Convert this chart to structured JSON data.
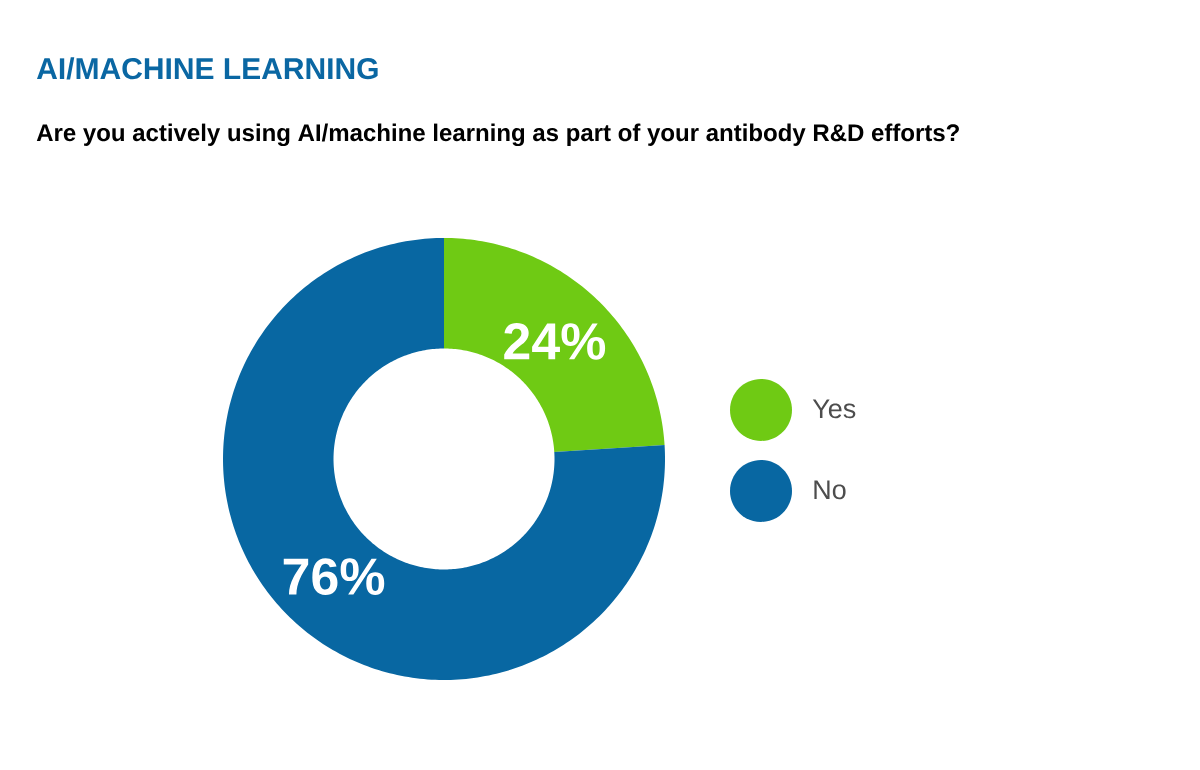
{
  "chart_data": {
    "type": "donut",
    "title": "AI/MACHINE LEARNING",
    "subtitle": "Are you actively using AI/machine learning as part of your antibody R&D efforts?",
    "categories": [
      "Yes",
      "No"
    ],
    "values": [
      24,
      76
    ],
    "colors": [
      "#6fca14",
      "#0867a2"
    ],
    "value_labels": [
      "24%",
      "76%"
    ],
    "legend": "right"
  }
}
